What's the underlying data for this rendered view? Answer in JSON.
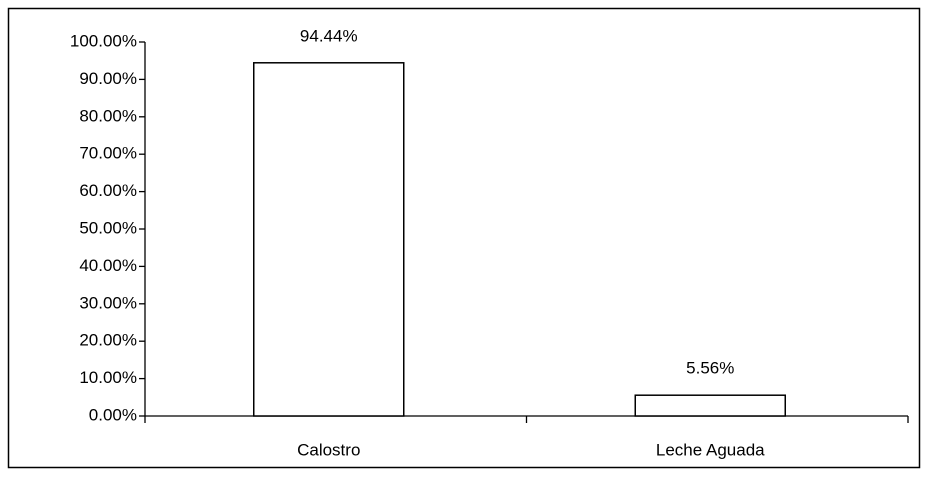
{
  "chart_data": {
    "type": "bar",
    "categories": [
      "Calostro",
      "Leche Aguada"
    ],
    "values": [
      94.44,
      5.56
    ],
    "value_labels": [
      "94.44%",
      "5.56%"
    ],
    "color": "#ffffff",
    "ylim": [
      0,
      100
    ],
    "yticks": [
      {
        "value": 0,
        "label": "0.00%"
      },
      {
        "value": 10,
        "label": "10.00%"
      },
      {
        "value": 20,
        "label": "20.00%"
      },
      {
        "value": 30,
        "label": "30.00%"
      },
      {
        "value": 40,
        "label": "40.00%"
      },
      {
        "value": 50,
        "label": "50.00%"
      },
      {
        "value": 60,
        "label": "60.00%"
      },
      {
        "value": 70,
        "label": "70.00%"
      },
      {
        "value": 80,
        "label": "80.00%"
      },
      {
        "value": 90,
        "label": "90.00%"
      },
      {
        "value": 100,
        "label": "100.00%"
      }
    ],
    "grid": false
  }
}
